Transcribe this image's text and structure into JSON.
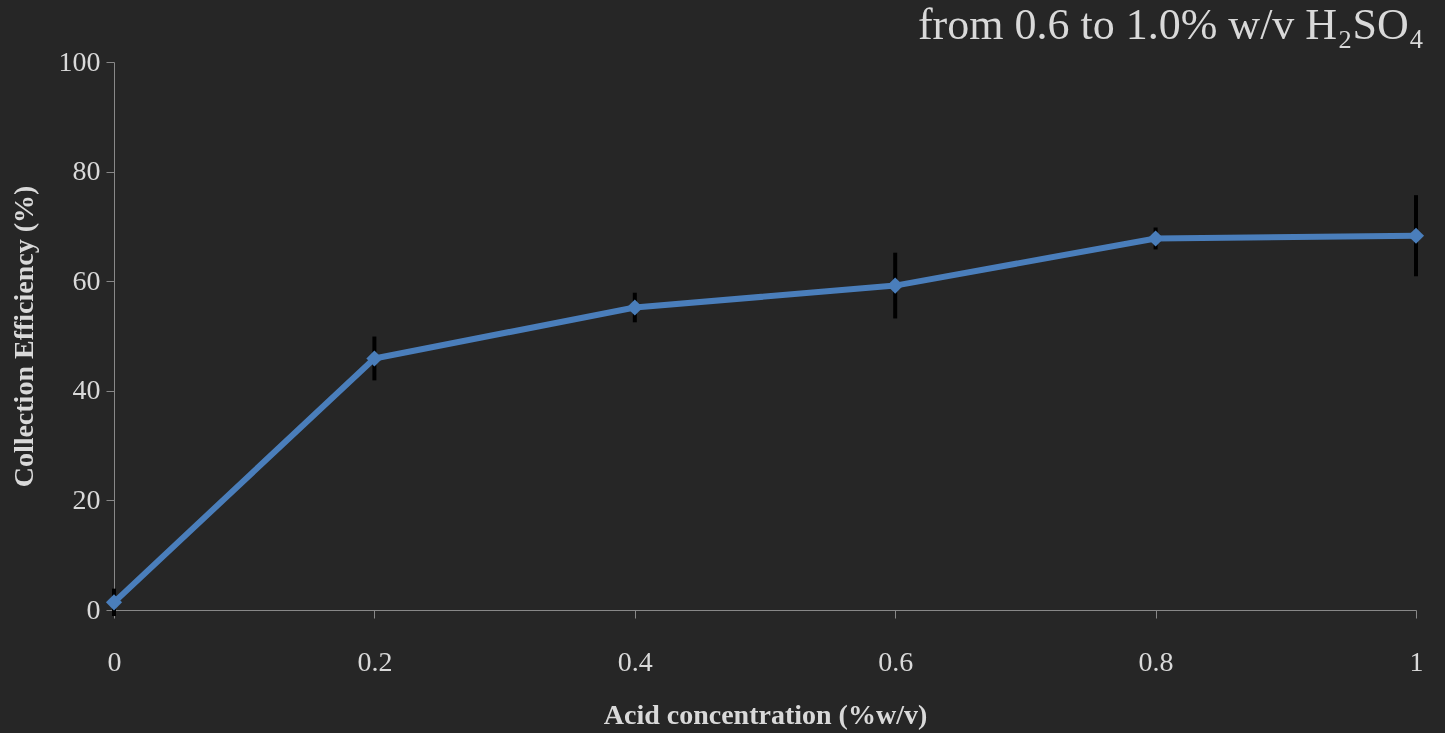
{
  "chart_data": {
    "type": "line",
    "title": "from 0.6 to 1.0% w/v H₂SO₄",
    "xlabel": "Acid concentration (%w/v)",
    "ylabel": "Collection Efficiency (%)",
    "x": [
      0,
      0.2,
      0.4,
      0.6,
      0.8,
      1.0
    ],
    "series": [
      {
        "color": "#4a7ebb",
        "values": [
          1.4,
          45.9,
          55.2,
          59.2,
          67.8,
          68.3
        ],
        "errors": [
          2.5,
          4,
          2.7,
          6,
          2,
          7.4
        ]
      }
    ],
    "xlim": [
      0,
      1
    ],
    "xticks": [
      0,
      0.2,
      0.4,
      0.6,
      0.8,
      1
    ],
    "ylim": [
      0,
      100
    ],
    "yticks": [
      0,
      20,
      40,
      60,
      80,
      100
    ],
    "grid": false,
    "marker": "diamond",
    "line_style": "solid"
  }
}
